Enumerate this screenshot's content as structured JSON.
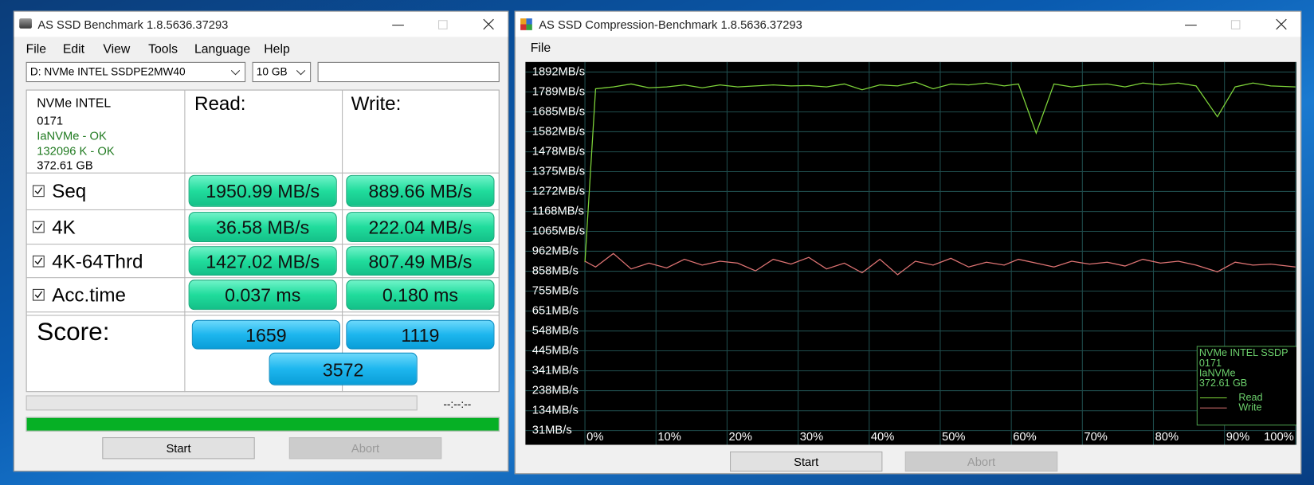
{
  "left_window": {
    "title": "AS SSD Benchmark 1.8.5636.37293",
    "menu": [
      "File",
      "Edit",
      "View",
      "Tools",
      "Language",
      "Help"
    ],
    "drive": "D: NVMe INTEL SSDPE2MW40",
    "size": "10 GB",
    "info": [
      "NVMe INTEL",
      "0171",
      "IaNVMe - OK",
      "132096 K - OK",
      "372.61 GB"
    ],
    "read_header": "Read:",
    "write_header": "Write:",
    "rows": [
      {
        "name": "Seq",
        "read": "1950.99 MB/s",
        "write": "889.66 MB/s"
      },
      {
        "name": "4K",
        "read": "36.58 MB/s",
        "write": "222.04 MB/s"
      },
      {
        "name": "4K-64Thrd",
        "read": "1427.02 MB/s",
        "write": "807.49 MB/s"
      },
      {
        "name": "Acc.time",
        "read": "0.037 ms",
        "write": "0.180 ms"
      }
    ],
    "score_label": "Score:",
    "score_read": "1659",
    "score_write": "1119",
    "score_total": "3572",
    "elapsed": "--:--:--",
    "buttons": [
      "Start",
      "Abort"
    ]
  },
  "right_window": {
    "title": "AS SSD Compression-Benchmark 1.8.5636.37293",
    "menu": [
      "File"
    ],
    "buttons": [
      "Start",
      "Abort"
    ]
  },
  "chart_data": {
    "type": "line",
    "x": [
      0,
      1.5,
      4,
      6.5,
      9,
      11.5,
      14,
      16.5,
      19,
      21.5,
      24,
      26.5,
      29,
      31.5,
      34,
      36.5,
      39,
      41.5,
      44,
      46.5,
      49,
      51.5,
      54,
      56.5,
      59,
      61,
      63.5,
      66,
      68.5,
      71,
      73.5,
      76,
      78.5,
      81,
      83.5,
      86,
      89,
      91.5,
      94,
      96.5,
      100
    ],
    "series": [
      {
        "name": "Read",
        "color": "#7ed43a",
        "values": [
          905,
          1805,
          1815,
          1830,
          1810,
          1815,
          1825,
          1810,
          1825,
          1815,
          1820,
          1825,
          1820,
          1822,
          1815,
          1830,
          1800,
          1825,
          1820,
          1840,
          1805,
          1830,
          1825,
          1835,
          1820,
          1830,
          1575,
          1830,
          1815,
          1825,
          1830,
          1815,
          1835,
          1825,
          1835,
          1820,
          1660,
          1815,
          1835,
          1820,
          1815
        ]
      },
      {
        "name": "Write",
        "color": "#e07474",
        "values": [
          910,
          880,
          950,
          870,
          900,
          875,
          920,
          890,
          910,
          900,
          860,
          920,
          895,
          930,
          870,
          900,
          850,
          920,
          840,
          910,
          890,
          925,
          880,
          905,
          890,
          920,
          900,
          880,
          910,
          895,
          905,
          885,
          920,
          900,
          910,
          890,
          855,
          905,
          890,
          895,
          880
        ]
      }
    ],
    "xlim": [
      0,
      100
    ],
    "xticks": [
      {
        "value": 0,
        "label": "0%"
      },
      {
        "value": 10,
        "label": "10%"
      },
      {
        "value": 20,
        "label": "20%"
      },
      {
        "value": 30,
        "label": "30%"
      },
      {
        "value": 40,
        "label": "40%"
      },
      {
        "value": 50,
        "label": "50%"
      },
      {
        "value": 60,
        "label": "60%"
      },
      {
        "value": 70,
        "label": "70%"
      },
      {
        "value": 80,
        "label": "80%"
      },
      {
        "value": 90,
        "label": "90%"
      },
      {
        "value": 100,
        "label": "100%"
      }
    ],
    "ylim": [
      31,
      1892
    ],
    "yticks": [
      {
        "value": 1892,
        "label": "1892MB/s"
      },
      {
        "value": 1789,
        "label": "1789MB/s"
      },
      {
        "value": 1685,
        "label": "1685MB/s"
      },
      {
        "value": 1582,
        "label": "1582MB/s"
      },
      {
        "value": 1478,
        "label": "1478MB/s"
      },
      {
        "value": 1375,
        "label": "1375MB/s"
      },
      {
        "value": 1272,
        "label": "1272MB/s"
      },
      {
        "value": 1168,
        "label": "1168MB/s"
      },
      {
        "value": 1065,
        "label": "1065MB/s"
      },
      {
        "value": 962,
        "label": "962MB/s"
      },
      {
        "value": 858,
        "label": "858MB/s"
      },
      {
        "value": 755,
        "label": "755MB/s"
      },
      {
        "value": 651,
        "label": "651MB/s"
      },
      {
        "value": 548,
        "label": "548MB/s"
      },
      {
        "value": 445,
        "label": "445MB/s"
      },
      {
        "value": 341,
        "label": "341MB/s"
      },
      {
        "value": 238,
        "label": "238MB/s"
      },
      {
        "value": 134,
        "label": "134MB/s"
      },
      {
        "value": 31,
        "label": "31MB/s"
      }
    ],
    "grid": true,
    "legend_title": [
      "NVMe INTEL SSDP",
      "0171",
      "IaNVMe",
      "372.61 GB"
    ],
    "legend": "lower-right"
  }
}
